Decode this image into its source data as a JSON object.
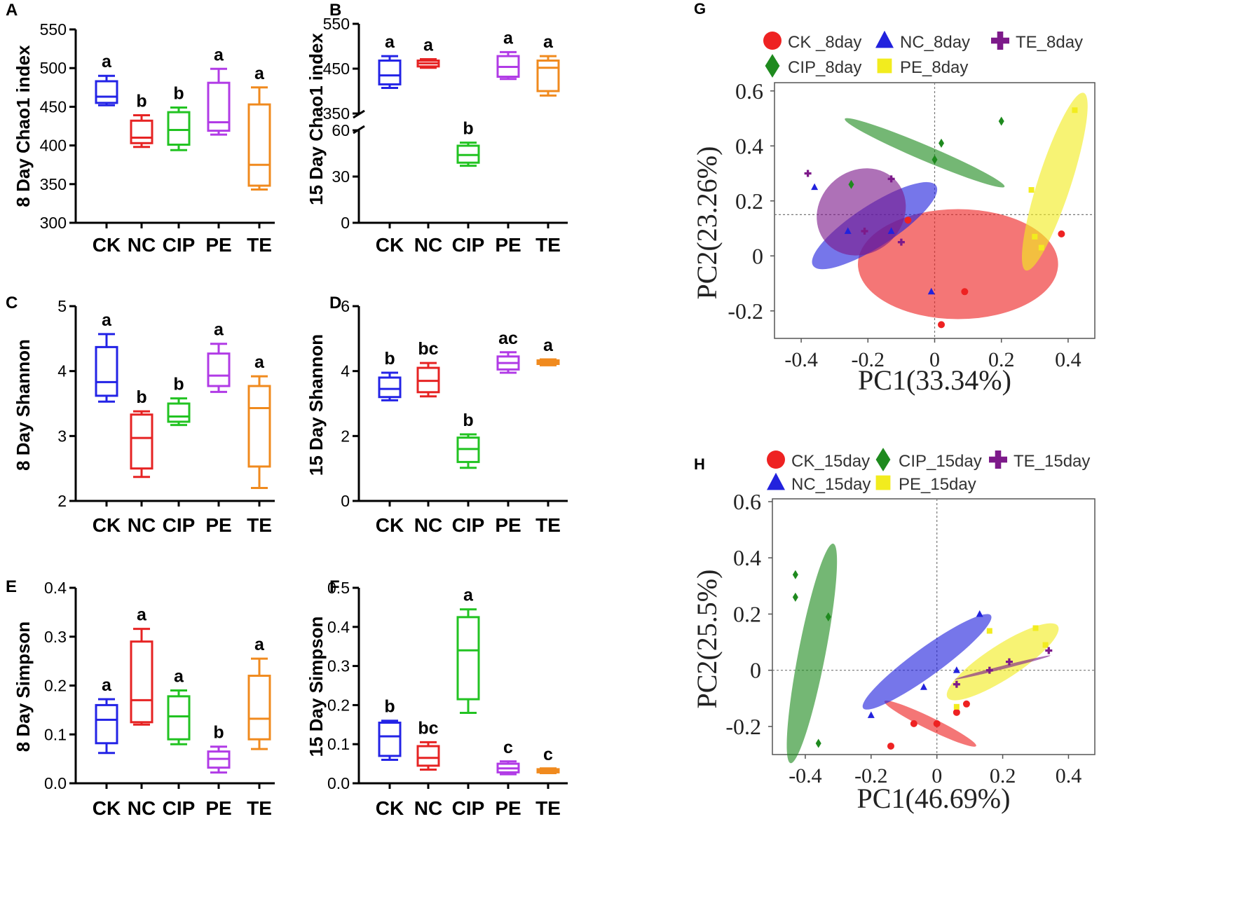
{
  "figure": {
    "description_free": true
  },
  "colors": {
    "CK": "#2323e6",
    "NC": "#e62323",
    "CIP": "#22c322",
    "PE": "#b13be6",
    "TE": "#f08a1e",
    "pca_CK": "#ee2222",
    "pca_NC": "#2222dd",
    "pca_CIP": "#1e8a1e",
    "pca_PE": "#f2ec1e",
    "pca_TE": "#7d1a8a"
  },
  "chart_data": [
    {
      "panel": "A",
      "type": "box",
      "ylabel": "8 Day Chao1 index",
      "categories": [
        "CK",
        "NC",
        "CIP",
        "PE",
        "TE"
      ],
      "yticks": [
        "300",
        "350",
        "400",
        "450",
        "500",
        "550"
      ],
      "ylim": [
        300,
        550
      ],
      "boxes": [
        {
          "min": 452,
          "q1": 455,
          "median": 463,
          "q3": 483,
          "max": 490,
          "sig": "a"
        },
        {
          "min": 398,
          "q1": 403,
          "median": 410,
          "q3": 432,
          "max": 439,
          "sig": "b"
        },
        {
          "min": 394,
          "q1": 401,
          "median": 420,
          "q3": 443,
          "max": 449,
          "sig": "b"
        },
        {
          "min": 414,
          "q1": 419,
          "median": 430,
          "q3": 481,
          "max": 499,
          "sig": "a"
        },
        {
          "min": 343,
          "q1": 348,
          "median": 375,
          "q3": 453,
          "max": 475,
          "sig": "a"
        }
      ]
    },
    {
      "panel": "B",
      "type": "box",
      "ylabel": "15 Day Chao1 index",
      "categories": [
        "CK",
        "NC",
        "CIP",
        "PE",
        "TE"
      ],
      "yticks_upper": [
        "350",
        "450",
        "550"
      ],
      "ylim_upper": [
        350,
        550
      ],
      "yticks_lower": [
        "0",
        "30",
        "60"
      ],
      "ylim_lower": [
        0,
        60
      ],
      "axis_break": true,
      "boxes": [
        {
          "segment": "upper",
          "min": 407,
          "q1": 415,
          "median": 435,
          "q3": 468,
          "max": 478,
          "sig": "a"
        },
        {
          "segment": "upper",
          "min": 452,
          "q1": 455,
          "median": 462,
          "q3": 468,
          "max": 471,
          "sig": "a"
        },
        {
          "segment": "lower",
          "min": 37,
          "q1": 39,
          "median": 44,
          "q3": 50,
          "max": 52,
          "sig": "b"
        },
        {
          "segment": "upper",
          "min": 427,
          "q1": 432,
          "median": 454,
          "q3": 478,
          "max": 487,
          "sig": "a"
        },
        {
          "segment": "upper",
          "min": 390,
          "q1": 400,
          "median": 452,
          "q3": 468,
          "max": 478,
          "sig": "a"
        }
      ]
    },
    {
      "panel": "C",
      "type": "box",
      "ylabel": "8 Day Shannon",
      "categories": [
        "CK",
        "NC",
        "CIP",
        "PE",
        "TE"
      ],
      "yticks": [
        "2",
        "3",
        "4",
        "5"
      ],
      "ylim": [
        2,
        5
      ],
      "boxes": [
        {
          "min": 3.53,
          "q1": 3.62,
          "median": 3.83,
          "q3": 4.37,
          "max": 4.57,
          "sig": "a"
        },
        {
          "min": 2.37,
          "q1": 2.5,
          "median": 2.97,
          "q3": 3.33,
          "max": 3.38,
          "sig": "b"
        },
        {
          "min": 3.17,
          "q1": 3.22,
          "median": 3.3,
          "q3": 3.5,
          "max": 3.58,
          "sig": "b"
        },
        {
          "min": 3.68,
          "q1": 3.77,
          "median": 3.93,
          "q3": 4.27,
          "max": 4.42,
          "sig": "a"
        },
        {
          "min": 2.2,
          "q1": 2.53,
          "median": 3.43,
          "q3": 3.77,
          "max": 3.92,
          "sig": "a"
        }
      ]
    },
    {
      "panel": "D",
      "type": "box",
      "ylabel": "15 Day Shannon",
      "categories": [
        "CK",
        "NC",
        "CIP",
        "PE",
        "TE"
      ],
      "yticks": [
        "0",
        "2",
        "4",
        "6"
      ],
      "ylim": [
        0,
        6
      ],
      "boxes": [
        {
          "min": 3.1,
          "q1": 3.2,
          "median": 3.45,
          "q3": 3.8,
          "max": 3.95,
          "sig": "b"
        },
        {
          "min": 3.22,
          "q1": 3.35,
          "median": 3.7,
          "q3": 4.1,
          "max": 4.25,
          "sig": "bc"
        },
        {
          "min": 1.02,
          "q1": 1.2,
          "median": 1.6,
          "q3": 1.95,
          "max": 2.05,
          "sig": "b"
        },
        {
          "min": 3.95,
          "q1": 4.05,
          "median": 4.25,
          "q3": 4.45,
          "max": 4.58,
          "sig": "ac"
        },
        {
          "min": 4.18,
          "q1": 4.22,
          "median": 4.28,
          "q3": 4.33,
          "max": 4.36,
          "sig": "a"
        }
      ]
    },
    {
      "panel": "E",
      "type": "box",
      "ylabel": "8 Day Simpson",
      "categories": [
        "CK",
        "NC",
        "CIP",
        "PE",
        "TE"
      ],
      "yticks": [
        "0.0",
        "0.1",
        "0.2",
        "0.3",
        "0.4"
      ],
      "ylim": [
        0,
        0.4
      ],
      "boxes": [
        {
          "min": 0.062,
          "q1": 0.082,
          "median": 0.13,
          "q3": 0.16,
          "max": 0.172,
          "sig": "a"
        },
        {
          "min": 0.12,
          "q1": 0.125,
          "median": 0.17,
          "q3": 0.29,
          "max": 0.316,
          "sig": "a"
        },
        {
          "min": 0.08,
          "q1": 0.09,
          "median": 0.137,
          "q3": 0.178,
          "max": 0.19,
          "sig": "a"
        },
        {
          "min": 0.022,
          "q1": 0.032,
          "median": 0.05,
          "q3": 0.065,
          "max": 0.075,
          "sig": "b"
        },
        {
          "min": 0.07,
          "q1": 0.09,
          "median": 0.132,
          "q3": 0.22,
          "max": 0.255,
          "sig": "a"
        }
      ]
    },
    {
      "panel": "F",
      "type": "box",
      "ylabel": "15 Day Simpson",
      "categories": [
        "CK",
        "NC",
        "CIP",
        "PE",
        "TE"
      ],
      "yticks": [
        "0.0",
        "0.1",
        "0.2",
        "0.3",
        "0.4",
        "0.5"
      ],
      "ylim": [
        0,
        0.5
      ],
      "boxes": [
        {
          "min": 0.06,
          "q1": 0.07,
          "median": 0.12,
          "q3": 0.155,
          "max": 0.16,
          "sig": "b"
        },
        {
          "min": 0.035,
          "q1": 0.045,
          "median": 0.065,
          "q3": 0.095,
          "max": 0.105,
          "sig": "bc"
        },
        {
          "min": 0.18,
          "q1": 0.215,
          "median": 0.34,
          "q3": 0.425,
          "max": 0.445,
          "sig": "a"
        },
        {
          "min": 0.023,
          "q1": 0.028,
          "median": 0.038,
          "q3": 0.05,
          "max": 0.056,
          "sig": "c"
        },
        {
          "min": 0.026,
          "q1": 0.028,
          "median": 0.032,
          "q3": 0.036,
          "max": 0.038,
          "sig": "c"
        }
      ]
    },
    {
      "panel": "G",
      "type": "scatter",
      "xlabel": "PC1(33.34%)",
      "ylabel": "PC2(23.26%)",
      "xticks": [
        "-0.4",
        "-0.2",
        "0",
        "0.2",
        "0.4"
      ],
      "xtick_values": [
        -0.4,
        -0.2,
        0,
        0.2,
        0.4
      ],
      "yticks": [
        "-0.2",
        "0",
        "0.2",
        "0.4",
        "0.6"
      ],
      "ytick_values": [
        -0.2,
        0,
        0.2,
        0.4,
        0.6
      ],
      "xlim": [
        -0.48,
        0.48
      ],
      "ylim": [
        -0.3,
        0.63
      ],
      "ref_x": 0,
      "ref_y": 0.15,
      "series": [
        {
          "key": "CK",
          "name": "CK _8day",
          "shape": "circle",
          "points": [
            [
              -0.08,
              0.13
            ],
            [
              0.09,
              -0.13
            ],
            [
              0.02,
              -0.25
            ],
            [
              0.38,
              0.08
            ]
          ],
          "ellipse": {
            "cx": 0.07,
            "cy": -0.03,
            "rx": 0.3,
            "ry": 0.2,
            "angle": 0
          }
        },
        {
          "key": "NC",
          "name": "NC_8day",
          "shape": "triangle",
          "points": [
            [
              -0.36,
              0.25
            ],
            [
              -0.26,
              0.09
            ],
            [
              -0.13,
              0.09
            ],
            [
              -0.01,
              -0.13
            ]
          ],
          "ellipse": {
            "cx": -0.18,
            "cy": 0.11,
            "rx": 0.22,
            "ry": 0.075,
            "angle": -33
          }
        },
        {
          "key": "CIP",
          "name": "CIP_8day",
          "shape": "diamond",
          "points": [
            [
              0.2,
              0.49
            ],
            [
              0.02,
              0.41
            ],
            [
              0.0,
              0.35
            ],
            [
              -0.25,
              0.26
            ]
          ],
          "ellipse": {
            "cx": -0.03,
            "cy": 0.375,
            "rx": 0.26,
            "ry": 0.028,
            "angle": 23
          }
        },
        {
          "key": "PE",
          "name": "PE_8day",
          "shape": "square",
          "points": [
            [
              0.42,
              0.53
            ],
            [
              0.29,
              0.24
            ],
            [
              0.3,
              0.07
            ],
            [
              0.32,
              0.03
            ]
          ],
          "ellipse": {
            "cx": 0.36,
            "cy": 0.27,
            "rx": 0.28,
            "ry": 0.06,
            "angle": -72
          }
        },
        {
          "key": "TE",
          "name": "TE_8day",
          "shape": "plus",
          "points": [
            [
              -0.38,
              0.3
            ],
            [
              -0.13,
              0.28
            ],
            [
              -0.21,
              0.09
            ],
            [
              -0.1,
              0.05
            ]
          ],
          "ellipse": {
            "cx": -0.22,
            "cy": 0.16,
            "rx": 0.14,
            "ry": 0.15,
            "angle": -40
          }
        }
      ]
    },
    {
      "panel": "H",
      "type": "scatter",
      "xlabel": "PC1(46.69%)",
      "ylabel": "PC2(25.5%)",
      "xticks": [
        "-0.4",
        "-0.2",
        "0",
        "0.2",
        "0.4"
      ],
      "xtick_values": [
        -0.4,
        -0.2,
        0,
        0.2,
        0.4
      ],
      "yticks": [
        "-0.2",
        "0",
        "0.2",
        "0.4",
        "0.6"
      ],
      "ytick_values": [
        -0.2,
        0,
        0.2,
        0.4,
        0.6
      ],
      "xlim": [
        -0.5,
        0.48
      ],
      "ylim": [
        -0.3,
        0.61
      ],
      "ref_x": 0,
      "ref_y": 0,
      "series": [
        {
          "key": "CK",
          "name": "CK_15day",
          "shape": "circle",
          "points": [
            [
              -0.14,
              -0.27
            ],
            [
              -0.07,
              -0.19
            ],
            [
              0.0,
              -0.19
            ],
            [
              0.06,
              -0.15
            ],
            [
              0.09,
              -0.12
            ]
          ],
          "ellipse": {
            "cx": -0.02,
            "cy": -0.19,
            "rx": 0.155,
            "ry": 0.022,
            "angle": 26
          }
        },
        {
          "key": "NC",
          "name": "NC_15day",
          "shape": "triangle",
          "points": [
            [
              0.13,
              0.2
            ],
            [
              0.06,
              0.0
            ],
            [
              -0.04,
              -0.06
            ],
            [
              -0.2,
              -0.16
            ]
          ],
          "ellipse": {
            "cx": -0.03,
            "cy": 0.03,
            "rx": 0.24,
            "ry": 0.05,
            "angle": -36
          }
        },
        {
          "key": "CIP",
          "name": "CIP_15day",
          "shape": "diamond",
          "points": [
            [
              -0.43,
              0.34
            ],
            [
              -0.43,
              0.26
            ],
            [
              -0.33,
              0.19
            ],
            [
              -0.36,
              -0.26
            ]
          ],
          "ellipse": {
            "cx": -0.38,
            "cy": 0.06,
            "rx": 0.34,
            "ry": 0.048,
            "angle": -79
          }
        },
        {
          "key": "PE",
          "name": "PE_15day",
          "shape": "square",
          "points": [
            [
              0.16,
              0.14
            ],
            [
              0.3,
              0.15
            ],
            [
              0.33,
              0.09
            ],
            [
              0.06,
              -0.13
            ]
          ],
          "ellipse": {
            "cx": 0.2,
            "cy": 0.03,
            "rx": 0.2,
            "ry": 0.06,
            "angle": -33
          }
        },
        {
          "key": "TE",
          "name": "TE_15day",
          "shape": "plus",
          "points": [
            [
              0.06,
              -0.05
            ],
            [
              0.16,
              0.0
            ],
            [
              0.22,
              0.03
            ],
            [
              0.34,
              0.07
            ]
          ],
          "ellipse": {
            "cx": 0.2,
            "cy": 0.01,
            "rx": 0.15,
            "ry": 0.006,
            "angle": -14
          }
        }
      ]
    }
  ]
}
